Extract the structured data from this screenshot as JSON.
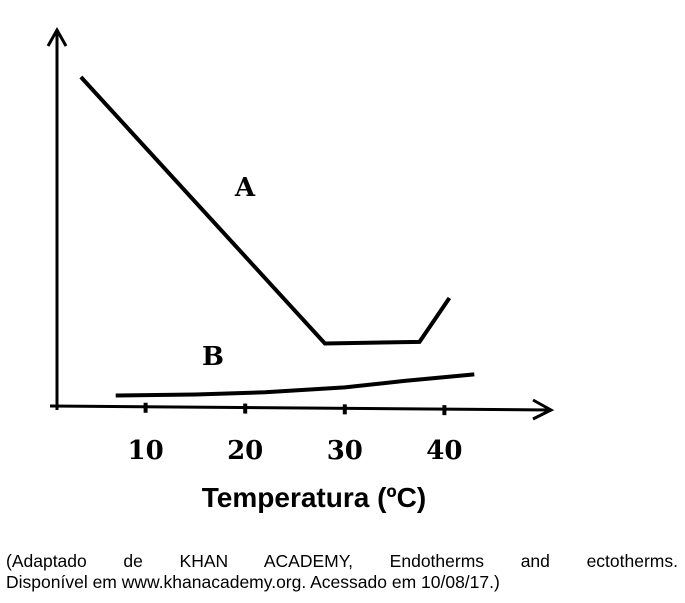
{
  "chart_data": {
    "type": "line",
    "xlabel": "Temperatura (ºC)",
    "ylabel": "",
    "xlim": [
      0,
      50
    ],
    "ylim": [
      0,
      100
    ],
    "x_ticks": [
      10,
      20,
      30,
      40
    ],
    "x_tick_labels": [
      "10",
      "20",
      "30",
      "40"
    ],
    "y_ticks": [],
    "grid": false,
    "legend": "none",
    "series": [
      {
        "name": "A",
        "x": [
          3.5,
          28,
          37.5,
          40.5
        ],
        "y": [
          100,
          18,
          18.5,
          32
        ]
      },
      {
        "name": "B",
        "x": [
          7,
          15,
          22,
          30,
          36,
          43
        ],
        "y": [
          2,
          2.3,
          3,
          4.5,
          6.5,
          8.5
        ]
      }
    ]
  },
  "caption": {
    "line1": "(Adaptado de KHAN ACADEMY, Endotherms and ectotherms.",
    "line2": "Disponível em www.khanacademy.org. Acessado em 10/08/17.)"
  }
}
